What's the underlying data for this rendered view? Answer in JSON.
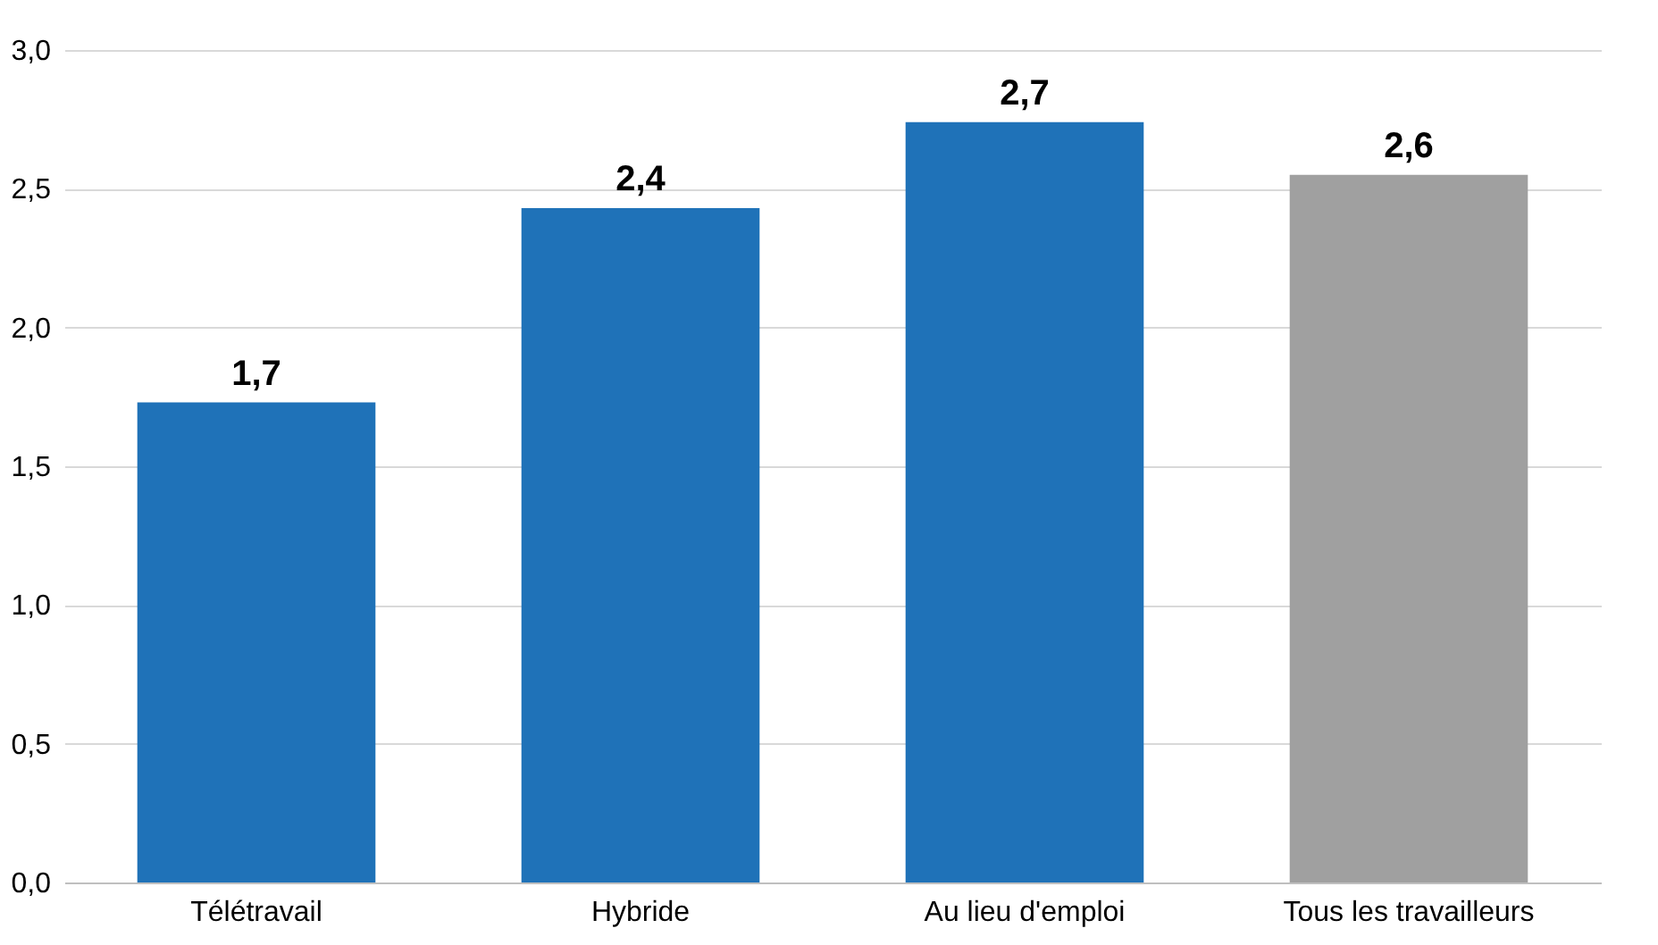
{
  "chart_data": {
    "type": "bar",
    "categories": [
      "Télétravail",
      "Hybride",
      "Au lieu d'emploi",
      "Tous les travailleurs"
    ],
    "values": [
      1.73,
      2.43,
      2.74,
      2.55
    ],
    "value_labels": [
      "1,7",
      "2,4",
      "2,7",
      "2,6"
    ],
    "colors": [
      "#1f72b8",
      "#1f72b8",
      "#1f72b8",
      "#a0a0a0"
    ],
    "ylim": [
      0,
      3
    ],
    "yticks": [
      {
        "value": 0,
        "label": "0,0"
      },
      {
        "value": 0.5,
        "label": "0,5"
      },
      {
        "value": 1,
        "label": "1,0"
      },
      {
        "value": 1.5,
        "label": "1,5"
      },
      {
        "value": 2,
        "label": "2,0"
      },
      {
        "value": 2.5,
        "label": "2,5"
      },
      {
        "value": 3,
        "label": "3,0"
      }
    ],
    "grid": "y"
  }
}
